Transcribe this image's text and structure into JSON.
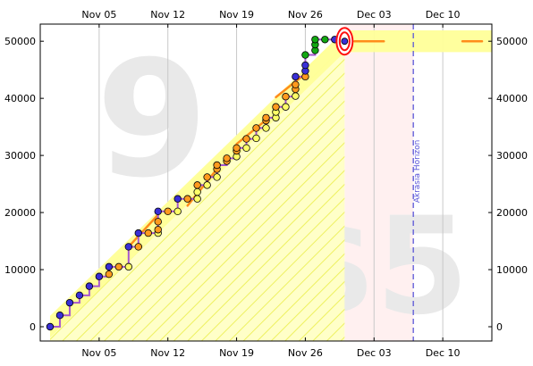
{
  "chart_data": {
    "type": "scatter",
    "title": "",
    "xlabel": "",
    "ylabel": "",
    "x_axis": "date",
    "xlim": [
      "2024-10-30",
      "2024-12-15"
    ],
    "ylim": [
      -2500,
      53000
    ],
    "x_ticks": [
      {
        "date": "2024-11-05",
        "label": "Nov 05"
      },
      {
        "date": "2024-11-12",
        "label": "Nov 12"
      },
      {
        "date": "2024-11-19",
        "label": "Nov 19"
      },
      {
        "date": "2024-11-26",
        "label": "Nov 26"
      },
      {
        "date": "2024-12-03",
        "label": "Dec 03"
      },
      {
        "date": "2024-12-10",
        "label": "Dec 10"
      }
    ],
    "y_ticks": [
      {
        "value": 0,
        "label": "0"
      },
      {
        "value": 10000,
        "label": "10000"
      },
      {
        "value": 20000,
        "label": "20000"
      },
      {
        "value": 30000,
        "label": "30000"
      },
      {
        "value": 40000,
        "label": "40000"
      },
      {
        "value": 50000,
        "label": "50000"
      }
    ],
    "grid": true,
    "today": "2024-11-30",
    "goal_value": 50000,
    "road": [
      {
        "date": "2024-10-31",
        "value": 0
      },
      {
        "date": "2024-11-30",
        "value": 50000
      },
      {
        "date": "2024-12-15",
        "value": 50000
      }
    ],
    "yellow_brick_road_width": 3800,
    "akrasia_horizon": {
      "date": "2024-12-07",
      "label": "Akrasia Horizon"
    },
    "watermarks": {
      "goal_count": "9",
      "pledge": "$5"
    },
    "series": [
      {
        "name": "",
        "points": [
          {
            "date": "2024-10-31",
            "value": 0,
            "color": "#3a2fd6"
          },
          {
            "date": "2024-11-01",
            "value": 2000,
            "color": "#3a2fd6"
          },
          {
            "date": "2024-11-02",
            "value": 4200,
            "color": "#3a2fd6"
          },
          {
            "date": "2024-11-03",
            "value": 5500,
            "color": "#3a2fd6"
          },
          {
            "date": "2024-11-04",
            "value": 7100,
            "color": "#3a2fd6"
          },
          {
            "date": "2024-11-05",
            "value": 8800,
            "color": "#3a2fd6"
          },
          {
            "date": "2024-11-06",
            "value": 9200,
            "color": "#ff9a1e"
          },
          {
            "date": "2024-11-06",
            "value": 10500,
            "color": "#3a2fd6"
          },
          {
            "date": "2024-11-07",
            "value": 10500,
            "color": "#ff9a1e"
          },
          {
            "date": "2024-11-08",
            "value": 10500,
            "color": "#ffff66"
          },
          {
            "date": "2024-11-08",
            "value": 14000,
            "color": "#3a2fd6"
          },
          {
            "date": "2024-11-09",
            "value": 14000,
            "color": "#ff9a1e"
          },
          {
            "date": "2024-11-09",
            "value": 16400,
            "color": "#3a2fd6"
          },
          {
            "date": "2024-11-10",
            "value": 16400,
            "color": "#ff9a1e"
          },
          {
            "date": "2024-11-11",
            "value": 16400,
            "color": "#ffff66"
          },
          {
            "date": "2024-11-11",
            "value": 17000,
            "color": "#ff9a1e"
          },
          {
            "date": "2024-11-11",
            "value": 18400,
            "color": "#ff9a1e"
          },
          {
            "date": "2024-11-11",
            "value": 20200,
            "color": "#3a2fd6"
          },
          {
            "date": "2024-11-12",
            "value": 20200,
            "color": "#ff9a1e"
          },
          {
            "date": "2024-11-13",
            "value": 20200,
            "color": "#ffff66"
          },
          {
            "date": "2024-11-13",
            "value": 22400,
            "color": "#3a2fd6"
          },
          {
            "date": "2024-11-14",
            "value": 22400,
            "color": "#ff9a1e"
          },
          {
            "date": "2024-11-15",
            "value": 22400,
            "color": "#ffff66"
          },
          {
            "date": "2024-11-15",
            "value": 23600,
            "color": "#ffff66"
          },
          {
            "date": "2024-11-15",
            "value": 24800,
            "color": "#ff9a1e"
          },
          {
            "date": "2024-11-16",
            "value": 24800,
            "color": "#ffff66"
          },
          {
            "date": "2024-11-16",
            "value": 26200,
            "color": "#ff9a1e"
          },
          {
            "date": "2024-11-17",
            "value": 26200,
            "color": "#ffff66"
          },
          {
            "date": "2024-11-17",
            "value": 27600,
            "color": "#ff9a1e"
          },
          {
            "date": "2024-11-17",
            "value": 28300,
            "color": "#ff9a1e"
          },
          {
            "date": "2024-11-18",
            "value": 29000,
            "color": "#ff9a1e"
          },
          {
            "date": "2024-11-18",
            "value": 29500,
            "color": "#ff9a1e"
          },
          {
            "date": "2024-11-19",
            "value": 29800,
            "color": "#ffff66"
          },
          {
            "date": "2024-11-19",
            "value": 30800,
            "color": "#ff9a1e"
          },
          {
            "date": "2024-11-19",
            "value": 31300,
            "color": "#ff9a1e"
          },
          {
            "date": "2024-11-20",
            "value": 31300,
            "color": "#ffff66"
          },
          {
            "date": "2024-11-20",
            "value": 32900,
            "color": "#ff9a1e"
          },
          {
            "date": "2024-11-21",
            "value": 33000,
            "color": "#ffff66"
          },
          {
            "date": "2024-11-21",
            "value": 34800,
            "color": "#ff9a1e"
          },
          {
            "date": "2024-11-22",
            "value": 34800,
            "color": "#ffff66"
          },
          {
            "date": "2024-11-22",
            "value": 36100,
            "color": "#ff9a1e"
          },
          {
            "date": "2024-11-22",
            "value": 36600,
            "color": "#ff9a1e"
          },
          {
            "date": "2024-11-23",
            "value": 36600,
            "color": "#ffff66"
          },
          {
            "date": "2024-11-23",
            "value": 37600,
            "color": "#ffff66"
          },
          {
            "date": "2024-11-23",
            "value": 38500,
            "color": "#ff9a1e"
          },
          {
            "date": "2024-11-24",
            "value": 38500,
            "color": "#ffff66"
          },
          {
            "date": "2024-11-24",
            "value": 40300,
            "color": "#ff9a1e"
          },
          {
            "date": "2024-11-25",
            "value": 40400,
            "color": "#ffff66"
          },
          {
            "date": "2024-11-25",
            "value": 41600,
            "color": "#ff9a1e"
          },
          {
            "date": "2024-11-25",
            "value": 42400,
            "color": "#ff9a1e"
          },
          {
            "date": "2024-11-25",
            "value": 43800,
            "color": "#3a2fd6"
          },
          {
            "date": "2024-11-26",
            "value": 43800,
            "color": "#ff9a1e"
          },
          {
            "date": "2024-11-26",
            "value": 44800,
            "color": "#3a2fd6"
          },
          {
            "date": "2024-11-26",
            "value": 45800,
            "color": "#3a2fd6"
          },
          {
            "date": "2024-11-26",
            "value": 47600,
            "color": "#13a813"
          },
          {
            "date": "2024-11-27",
            "value": 48400,
            "color": "#13a813"
          },
          {
            "date": "2024-11-27",
            "value": 49400,
            "color": "#13a813"
          },
          {
            "date": "2024-11-27",
            "value": 50300,
            "color": "#13a813"
          },
          {
            "date": "2024-11-28",
            "value": 50300,
            "color": "#13a813"
          },
          {
            "date": "2024-11-29",
            "value": 50300,
            "color": "#3a2fd6"
          }
        ]
      }
    ],
    "steps": [
      {
        "date": "2024-10-31",
        "value": 0
      },
      {
        "date": "2024-11-01",
        "value": 2000
      },
      {
        "date": "2024-11-02",
        "value": 4200
      },
      {
        "date": "2024-11-03",
        "value": 5500
      },
      {
        "date": "2024-11-04",
        "value": 7100
      },
      {
        "date": "2024-11-05",
        "value": 8800
      },
      {
        "date": "2024-11-06",
        "value": 10500
      },
      {
        "date": "2024-11-08",
        "value": 14000
      },
      {
        "date": "2024-11-09",
        "value": 16400
      },
      {
        "date": "2024-11-11",
        "value": 20200
      },
      {
        "date": "2024-11-13",
        "value": 22400
      },
      {
        "date": "2024-11-15",
        "value": 24800
      },
      {
        "date": "2024-11-16",
        "value": 26200
      },
      {
        "date": "2024-11-17",
        "value": 28300
      },
      {
        "date": "2024-11-18",
        "value": 29500
      },
      {
        "date": "2024-11-19",
        "value": 31300
      },
      {
        "date": "2024-11-20",
        "value": 32900
      },
      {
        "date": "2024-11-21",
        "value": 34800
      },
      {
        "date": "2024-11-22",
        "value": 36600
      },
      {
        "date": "2024-11-23",
        "value": 38500
      },
      {
        "date": "2024-11-24",
        "value": 40300
      },
      {
        "date": "2024-11-25",
        "value": 43800
      },
      {
        "date": "2024-11-26",
        "value": 47600
      },
      {
        "date": "2024-11-27",
        "value": 50300
      },
      {
        "date": "2024-11-29",
        "value": 50300
      }
    ],
    "trend_segments": [
      [
        {
          "date": "2024-11-08",
          "value": 14000
        },
        {
          "date": "2024-11-11",
          "value": 19600
        }
      ],
      [
        {
          "date": "2024-11-14",
          "value": 21200
        },
        {
          "date": "2024-11-17",
          "value": 27600
        }
      ],
      [
        {
          "date": "2024-11-19",
          "value": 32000
        },
        {
          "date": "2024-11-22",
          "value": 36200
        }
      ],
      [
        {
          "date": "2024-11-23",
          "value": 40200
        },
        {
          "date": "2024-11-26",
          "value": 44300
        }
      ],
      [
        {
          "date": "2024-12-01",
          "value": 50000
        },
        {
          "date": "2024-12-04",
          "value": 50000
        }
      ],
      [
        {
          "date": "2024-12-12",
          "value": 50000
        },
        {
          "date": "2024-12-14",
          "value": 50000
        }
      ]
    ],
    "colors": {
      "road": "#ffff99",
      "road_hatch": "#f1f36a",
      "today_band": "#fff0f0",
      "grid": "#c8c8c8",
      "step_line": "#a657cf",
      "trend_line": "#ff8c1a",
      "horizon": "#5a55d8",
      "bullseye": "#ff1010"
    }
  }
}
